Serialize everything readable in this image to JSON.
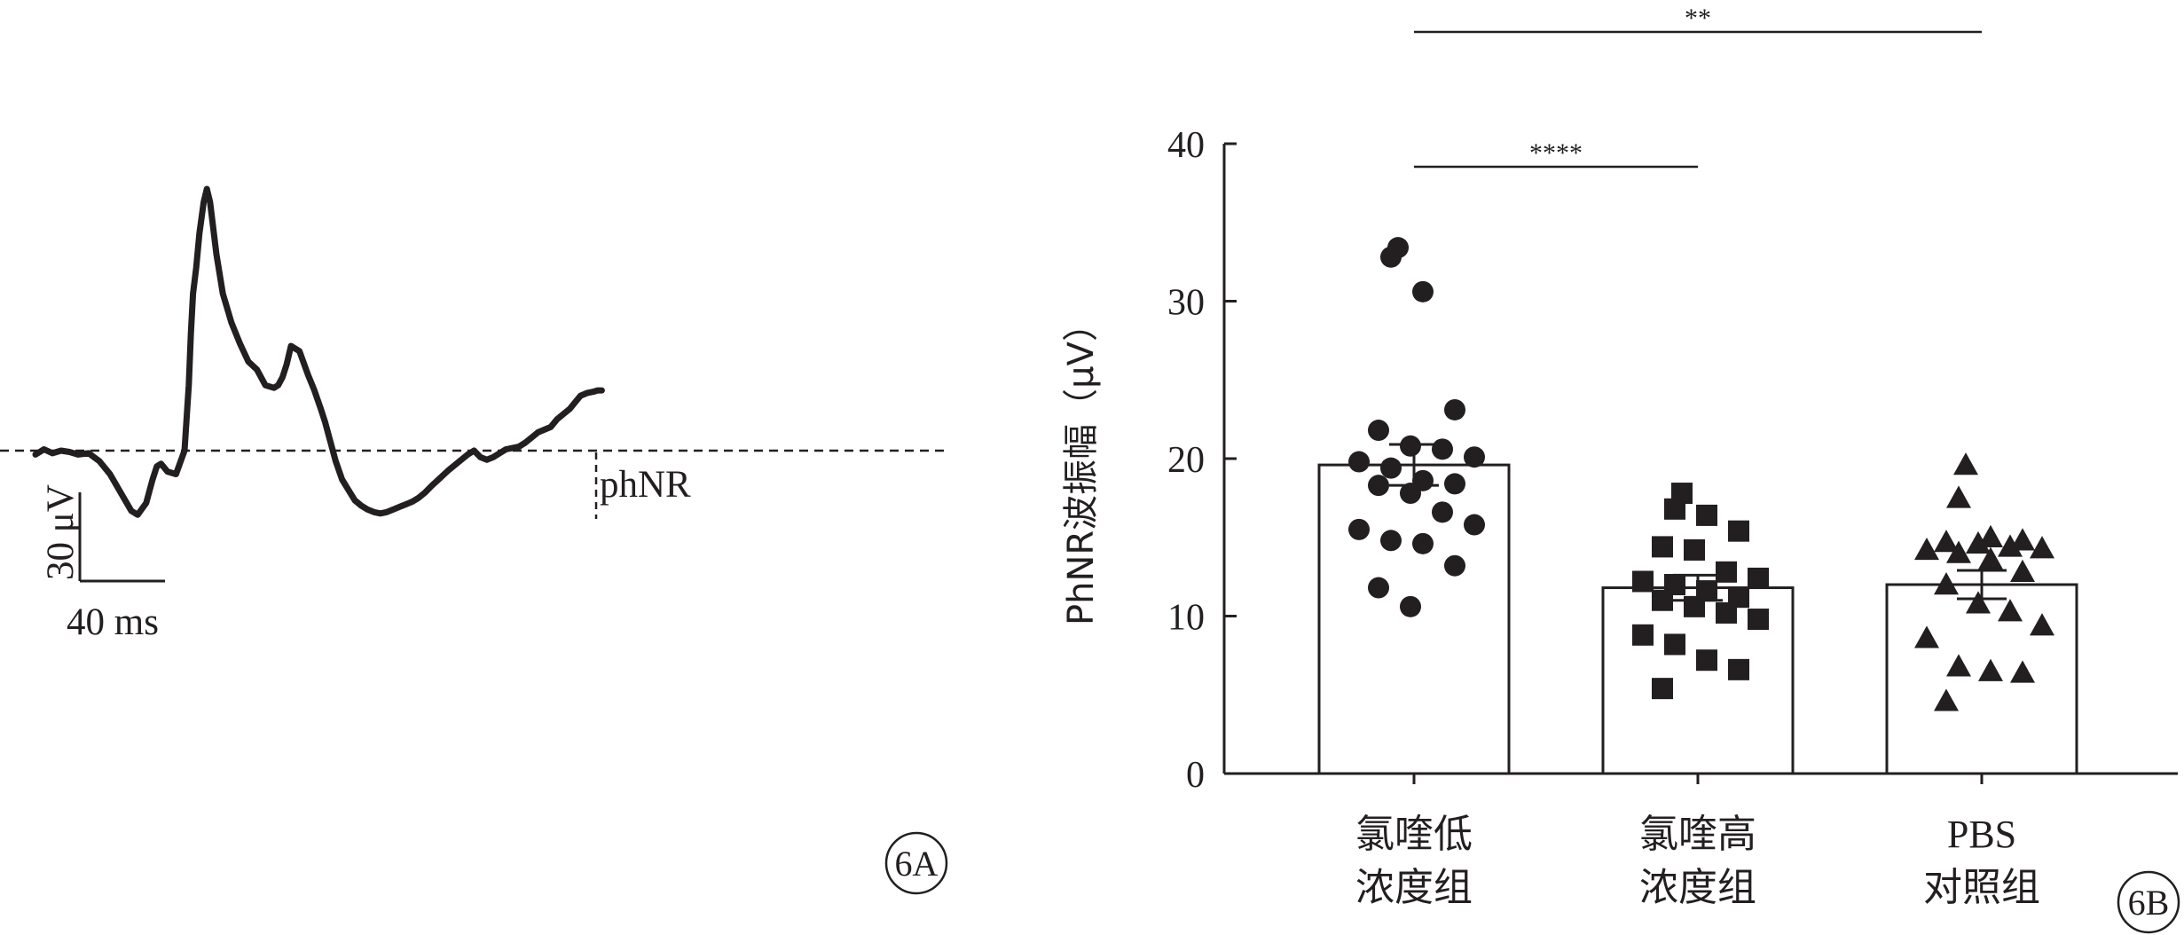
{
  "chart_data": [
    {
      "type": "line",
      "panel_label": "6A",
      "annotation": "phNR",
      "scale_bar": {
        "vertical_label": "30 μV",
        "horizontal_label": "40 ms",
        "vertical_value_uV": 30,
        "horizontal_value_ms": 40
      },
      "baseline": "dashed",
      "x_ms": [
        0,
        4,
        8,
        12,
        16,
        20,
        25,
        30,
        35,
        40,
        45,
        48,
        52,
        55,
        57,
        59,
        62,
        66,
        70,
        72,
        73,
        74,
        75.5,
        77,
        79,
        80.5,
        82,
        85,
        88,
        92,
        96,
        100,
        104,
        108,
        112,
        114,
        116,
        118,
        120,
        124,
        128,
        131,
        134,
        136,
        138,
        141,
        144,
        147,
        150,
        153,
        156,
        159,
        162,
        165,
        168,
        171,
        174,
        177,
        180,
        183,
        186,
        188,
        190,
        192,
        194,
        197,
        200,
        203,
        206,
        209,
        212,
        215,
        218,
        221,
        224,
        227,
        230,
        233,
        236,
        239,
        242,
        245,
        248,
        251,
        254,
        256,
        259,
        262,
        264,
        266
      ],
      "y_uV": [
        -1.5,
        0.5,
        -1,
        0,
        -0.5,
        -1.5,
        -1,
        -4,
        -9,
        -16,
        -23,
        -24.5,
        -20,
        -11,
        -6,
        -5,
        -8,
        -9,
        0,
        25,
        45,
        60,
        70,
        83,
        95,
        100,
        95,
        75,
        60,
        49,
        41,
        34,
        31,
        25,
        24,
        25,
        28,
        33,
        40,
        38,
        29,
        23,
        16,
        11,
        5,
        -4,
        -11,
        -15,
        -19,
        -21,
        -22.5,
        -23.5,
        -24,
        -23.5,
        -22.5,
        -21.5,
        -20.5,
        -19.5,
        -18,
        -16,
        -13.5,
        -12,
        -10.5,
        -9,
        -7.5,
        -5.5,
        -3.5,
        -1.5,
        0,
        -2.5,
        -3.5,
        -2.5,
        -1,
        0.5,
        1,
        1.5,
        3,
        5,
        7,
        8,
        9,
        12,
        14,
        16,
        19,
        21,
        22,
        22.5,
        23,
        23
      ]
    },
    {
      "type": "bar",
      "panel_label": "6B",
      "ylabel": "PhNR波振幅（μV）",
      "ylim": [
        0,
        40
      ],
      "yticks": [
        "0",
        "10",
        "20",
        "30",
        "40"
      ],
      "categories": [
        [
          "氯喹低",
          "浓度组"
        ],
        [
          "氯喹高",
          "浓度组"
        ],
        [
          "PBS",
          "对照组"
        ]
      ],
      "means": [
        19.6,
        11.8,
        12.0
      ],
      "sem": [
        1.3,
        0.8,
        0.9
      ],
      "markers": [
        "circle",
        "square",
        "triangle"
      ],
      "points": [
        [
          33.4,
          32.8,
          30.6,
          23.1,
          21.8,
          20.8,
          20.6,
          20.1,
          19.8,
          19.4,
          18.6,
          18.4,
          18.3,
          17.8,
          16.6,
          15.8,
          15.5,
          14.8,
          14.6,
          13.2,
          11.8,
          10.6
        ],
        [
          17.8,
          16.8,
          16.4,
          15.4,
          14.4,
          14.2,
          12.8,
          12.4,
          12.2,
          12.0,
          11.6,
          11.2,
          11.0,
          10.6,
          10.2,
          9.8,
          8.8,
          8.2,
          7.2,
          6.6,
          5.4
        ],
        [
          19.6,
          17.5,
          15.0,
          14.8,
          14.7,
          14.6,
          14.4,
          14.3,
          14.2,
          14.0,
          13.6,
          12.8,
          12.0,
          10.8,
          10.3,
          9.4,
          8.6,
          6.8,
          6.5,
          6.4,
          4.6
        ]
      ],
      "significance": [
        {
          "from": 0,
          "to": 1,
          "label": "****"
        },
        {
          "from": 0,
          "to": 2,
          "label": "**"
        }
      ]
    }
  ]
}
